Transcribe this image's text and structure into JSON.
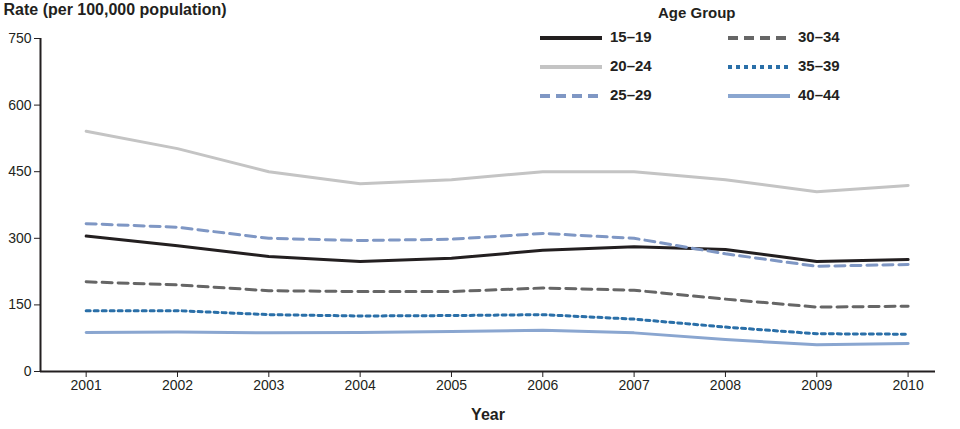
{
  "chart_data": {
    "type": "line",
    "x_label": "Year",
    "y_label": "Rate (per 100,000 population)",
    "legend_title": "Age Group",
    "legend": "top-right",
    "grid": false,
    "x": [
      2001,
      2002,
      2003,
      2004,
      2005,
      2006,
      2007,
      2008,
      2009,
      2010
    ],
    "xlim": [
      2000.5,
      2010.3
    ],
    "xticks": [
      2001,
      2002,
      2003,
      2004,
      2005,
      2006,
      2007,
      2008,
      2009,
      2010
    ],
    "ylim": [
      0,
      750
    ],
    "yticks": [
      0,
      150,
      300,
      450,
      600,
      750
    ],
    "series": [
      {
        "name": "15–19",
        "color": "#231f20",
        "line_style": "solid",
        "values": [
          305,
          283,
          259,
          248,
          255,
          273,
          281,
          275,
          248,
          252
        ]
      },
      {
        "name": "20–24",
        "color": "#c4c4c4",
        "line_style": "solid",
        "values": [
          541,
          502,
          450,
          423,
          432,
          450,
          450,
          432,
          405,
          419
        ]
      },
      {
        "name": "25–29",
        "color": "#7f97c4",
        "line_style": "dashed",
        "values": [
          333,
          325,
          300,
          295,
          298,
          311,
          300,
          265,
          237,
          241
        ]
      },
      {
        "name": "30–34",
        "color": "#666666",
        "line_style": "dashed",
        "values": [
          202,
          195,
          182,
          180,
          180,
          188,
          183,
          163,
          145,
          147
        ]
      },
      {
        "name": "35–39",
        "color": "#2a6fa8",
        "line_style": "dotted",
        "values": [
          137,
          137,
          128,
          125,
          126,
          128,
          118,
          100,
          85,
          84
        ]
      },
      {
        "name": "40–44",
        "color": "#8aa6d0",
        "line_style": "solid",
        "values": [
          88,
          89,
          87,
          88,
          90,
          93,
          87,
          72,
          60,
          63
        ]
      }
    ]
  }
}
